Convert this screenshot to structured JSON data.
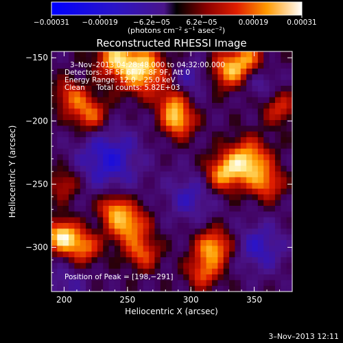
{
  "chart_data": {
    "type": "heatmap",
    "title": "Reconstructed RHESSI Image",
    "xlabel": "Heliocentric X (arcsec)",
    "ylabel": "Heliocentric Y (arcsec)",
    "xlim": [
      190,
      380
    ],
    "ylim": [
      -335,
      -145
    ],
    "x_ticks": [
      200,
      250,
      300,
      350
    ],
    "y_ticks": [
      -150,
      -200,
      -250,
      -300
    ],
    "x_tick_labels": [
      "200",
      "250",
      "300",
      "350"
    ],
    "y_tick_labels": [
      "−150",
      "−200",
      "−250",
      "−300"
    ],
    "colorbar": {
      "range": [
        -0.00031,
        0.00031
      ],
      "ticks": [
        -0.00031,
        -0.00019,
        -6.2e-05,
        6.2e-05,
        0.00019,
        0.00031
      ],
      "tick_labels": [
        "−0.00031",
        "−0.00019",
        "−6.2e−05",
        "6.2e−05",
        "0.00019",
        "0.00031"
      ],
      "unit_label_parts": [
        "(photons cm",
        "−2",
        " s",
        "−1",
        " asec",
        "−2",
        ")"
      ]
    },
    "annotations": [
      "3–Nov–2013 04:28:48.000 to 04:32:00.000",
      "Detectors: 3F 5F 6F 7F 8F 9F, Att 0",
      "Energy Range: 12.0 – 25.0 keV",
      "Clean     Total counts: 5.82E+03"
    ],
    "peak_label": "Position of Peak = [198,−291]",
    "peak": [
      198,
      -291
    ],
    "sources": [
      {
        "x": 198,
        "y": -291,
        "amp": 1.0,
        "sigma": 9
      },
      {
        "x": 215,
        "y": -300,
        "amp": 0.7,
        "sigma": 9
      },
      {
        "x": 250,
        "y": -282,
        "amp": 0.85,
        "sigma": 11
      },
      {
        "x": 238,
        "y": -268,
        "amp": 0.6,
        "sigma": 8
      },
      {
        "x": 262,
        "y": -305,
        "amp": 0.6,
        "sigma": 9
      },
      {
        "x": 318,
        "y": -300,
        "amp": 0.85,
        "sigma": 10
      },
      {
        "x": 310,
        "y": -320,
        "amp": 0.6,
        "sigma": 9
      },
      {
        "x": 345,
        "y": -232,
        "amp": 0.95,
        "sigma": 12
      },
      {
        "x": 325,
        "y": -242,
        "amp": 0.75,
        "sigma": 10
      },
      {
        "x": 360,
        "y": -250,
        "amp": 0.6,
        "sigma": 9
      },
      {
        "x": 290,
        "y": -200,
        "amp": 0.85,
        "sigma": 9
      },
      {
        "x": 285,
        "y": -185,
        "amp": 0.55,
        "sigma": 8
      },
      {
        "x": 262,
        "y": -160,
        "amp": 0.95,
        "sigma": 13
      },
      {
        "x": 240,
        "y": -150,
        "amp": 0.75,
        "sigma": 11
      },
      {
        "x": 220,
        "y": -195,
        "amp": 0.7,
        "sigma": 10
      },
      {
        "x": 205,
        "y": -180,
        "amp": 0.55,
        "sigma": 9
      },
      {
        "x": 330,
        "y": -160,
        "amp": 0.8,
        "sigma": 10
      },
      {
        "x": 345,
        "y": -150,
        "amp": 0.6,
        "sigma": 9
      },
      {
        "x": 200,
        "y": -250,
        "amp": 0.45,
        "sigma": 9
      },
      {
        "x": 370,
        "y": -190,
        "amp": 0.5,
        "sigma": 9
      }
    ],
    "minima": [
      {
        "x": 235,
        "y": -230,
        "amp": -0.55,
        "sigma": 18
      },
      {
        "x": 300,
        "y": -260,
        "amp": -0.4,
        "sigma": 14
      },
      {
        "x": 355,
        "y": -300,
        "amp": -0.45,
        "sigma": 14
      },
      {
        "x": 200,
        "y": -330,
        "amp": -0.3,
        "sigma": 12
      },
      {
        "x": 300,
        "y": -165,
        "amp": -0.35,
        "sigma": 10
      },
      {
        "x": 355,
        "y": -170,
        "amp": -0.3,
        "sigma": 9
      }
    ],
    "footer_timestamp": "3–Nov–2013 12:11"
  }
}
